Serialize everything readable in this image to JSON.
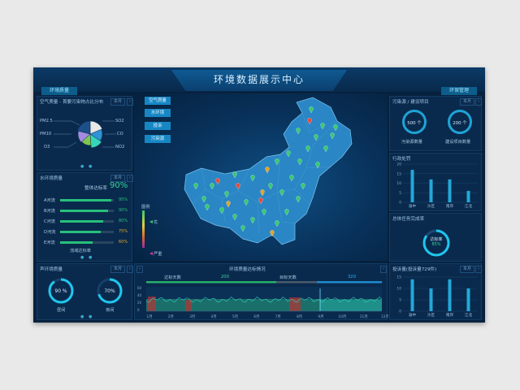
{
  "title": "环境数据展示中心",
  "top_tabs": {
    "left": "环境质量",
    "right": "环保管理"
  },
  "air_quality": {
    "title": "空气质量 - 首要污染物占比分布",
    "select": "本月",
    "legend_left": [
      "PM2.5",
      "PM10",
      "O3"
    ],
    "legend_right": [
      "SO2",
      "CO",
      "NO2"
    ],
    "colors": [
      "#e8e8e8",
      "#2f93d6",
      "#38d6b8",
      "#7fc84a",
      "#a38be0",
      "#1d4f8a"
    ]
  },
  "water_quality": {
    "title": "水环境质量",
    "select": "本月",
    "summary_label": "整体达标率",
    "summary_value": "90%",
    "rows": [
      {
        "name": "A河流",
        "value": 95,
        "label": "95%",
        "color": "#28c07a"
      },
      {
        "name": "B河流",
        "value": 90,
        "label": "90%",
        "color": "#28c07a"
      },
      {
        "name": "C河流",
        "value": 80,
        "label": "80%",
        "color": "#28c07a"
      },
      {
        "name": "D河流",
        "value": 75,
        "label": "75%",
        "color": "#e0a42a"
      },
      {
        "name": "E河流",
        "value": 60,
        "label": "60%",
        "color": "#e0a42a"
      }
    ],
    "footer": "流域达标率"
  },
  "noise": {
    "title": "声环境质量",
    "select": "本月",
    "rings": [
      {
        "value": "90 %",
        "label": "昼间",
        "fraction": 0.9
      },
      {
        "value": "70%",
        "label": "夜间",
        "fraction": 0.7
      }
    ]
  },
  "map_buttons": [
    "空气质量",
    "水环境",
    "投诉",
    "污染源"
  ],
  "map_legend": {
    "title": "图例",
    "top": "优",
    "bottom": "严重"
  },
  "compliance": {
    "title": "环境质量达标情况",
    "left_label": "达标天数",
    "left_value": "200",
    "right_label": "目标天数",
    "right_value": "320",
    "months": [
      "1月",
      "2月",
      "3月",
      "4月",
      "5月",
      "6月",
      "7月",
      "8月",
      "9月",
      "10月",
      "11月",
      "12月"
    ],
    "ylabels": [
      "60",
      "40",
      "20",
      "0"
    ]
  },
  "pollution_source": {
    "title": "污染源 / 建设项目",
    "select": "本月",
    "rings": [
      {
        "value": "500 个",
        "label": "污染源数量"
      },
      {
        "value": "200 个",
        "label": "建设项目数量"
      }
    ]
  },
  "admin_penalty": {
    "title": "行政处罚",
    "yticks": [
      "20",
      "15",
      "10",
      "5",
      "0"
    ],
    "categories": [
      "渝中",
      "沙区",
      "南岸",
      "江北"
    ],
    "values": [
      17,
      12,
      12,
      6
    ]
  },
  "task_completion": {
    "title": "总体任务完成率",
    "ring_label": "达标率",
    "ring_value": "85%",
    "fraction": 0.85
  },
  "complaints": {
    "title": "投诉量(投诉量729件)",
    "select": "本月",
    "yticks": [
      "15",
      "10",
      "5",
      "0"
    ],
    "categories": [
      "渝中",
      "沙区",
      "南岸",
      "江北"
    ],
    "values": [
      14,
      10,
      14,
      10
    ]
  }
}
